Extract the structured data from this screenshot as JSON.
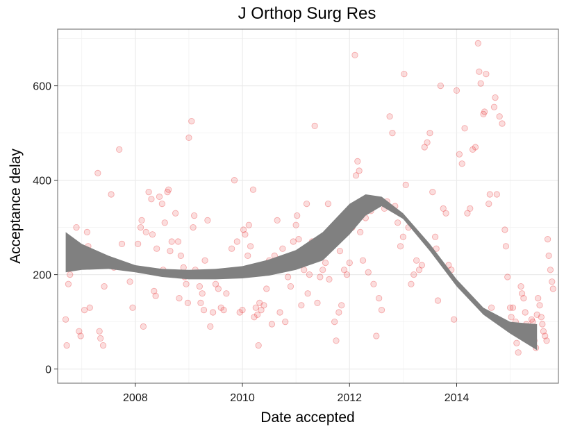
{
  "chart_data": {
    "type": "scatter",
    "title": "J Orthop Surg Res",
    "xlabel": "Date accepted",
    "ylabel": "Acceptance delay",
    "xlim": [
      2006.55,
      2015.9
    ],
    "ylim": [
      -30,
      720
    ],
    "x_ticks": [
      2008,
      2010,
      2012,
      2014
    ],
    "x_tick_labels": [
      "2008",
      "2010",
      "2012",
      "2014"
    ],
    "y_ticks": [
      0,
      200,
      400,
      600
    ],
    "y_tick_labels": [
      "0",
      "200",
      "400",
      "600"
    ],
    "grid": true,
    "legend": "none",
    "point_color": "#e41a1c",
    "point_opacity": 0.15,
    "ribbon_color": "#808080",
    "series": [
      {
        "values": [
          [
            2006.7,
            105
          ],
          [
            2006.72,
            50
          ],
          [
            2006.75,
            180
          ],
          [
            2006.78,
            200
          ],
          [
            2006.8,
            265
          ],
          [
            2006.82,
            245
          ],
          [
            2006.85,
            230
          ],
          [
            2006.9,
            300
          ],
          [
            2006.95,
            80
          ],
          [
            2006.98,
            70
          ],
          [
            2007.0,
            250
          ],
          [
            2007.05,
            125
          ],
          [
            2007.1,
            290
          ],
          [
            2007.12,
            260
          ],
          [
            2007.15,
            130
          ],
          [
            2007.3,
            415
          ],
          [
            2007.33,
            80
          ],
          [
            2007.35,
            65
          ],
          [
            2007.4,
            50
          ],
          [
            2007.42,
            175
          ],
          [
            2007.55,
            370
          ],
          [
            2007.6,
            215
          ],
          [
            2007.62,
            220
          ],
          [
            2007.7,
            465
          ],
          [
            2007.75,
            265
          ],
          [
            2007.9,
            185
          ],
          [
            2007.95,
            130
          ],
          [
            2008.05,
            265
          ],
          [
            2008.1,
            300
          ],
          [
            2008.12,
            315
          ],
          [
            2008.15,
            90
          ],
          [
            2008.2,
            290
          ],
          [
            2008.25,
            375
          ],
          [
            2008.3,
            360
          ],
          [
            2008.32,
            285
          ],
          [
            2008.35,
            165
          ],
          [
            2008.38,
            155
          ],
          [
            2008.4,
            255
          ],
          [
            2008.45,
            365
          ],
          [
            2008.5,
            350
          ],
          [
            2008.52,
            210
          ],
          [
            2008.55,
            310
          ],
          [
            2008.6,
            375
          ],
          [
            2008.62,
            380
          ],
          [
            2008.65,
            250
          ],
          [
            2008.68,
            270
          ],
          [
            2008.7,
            200
          ],
          [
            2008.75,
            330
          ],
          [
            2008.8,
            270
          ],
          [
            2008.82,
            150
          ],
          [
            2008.85,
            240
          ],
          [
            2008.9,
            215
          ],
          [
            2008.92,
            195
          ],
          [
            2008.95,
            180
          ],
          [
            2008.98,
            140
          ],
          [
            2009.0,
            490
          ],
          [
            2009.05,
            525
          ],
          [
            2009.08,
            300
          ],
          [
            2009.1,
            325
          ],
          [
            2009.12,
            210
          ],
          [
            2009.15,
            200
          ],
          [
            2009.2,
            175
          ],
          [
            2009.22,
            140
          ],
          [
            2009.25,
            160
          ],
          [
            2009.28,
            125
          ],
          [
            2009.3,
            230
          ],
          [
            2009.35,
            315
          ],
          [
            2009.4,
            90
          ],
          [
            2009.45,
            120
          ],
          [
            2009.5,
            180
          ],
          [
            2009.55,
            170
          ],
          [
            2009.6,
            130
          ],
          [
            2009.65,
            125
          ],
          [
            2009.7,
            160
          ],
          [
            2009.8,
            255
          ],
          [
            2009.85,
            400
          ],
          [
            2009.9,
            270
          ],
          [
            2009.95,
            120
          ],
          [
            2010.0,
            125
          ],
          [
            2010.02,
            295
          ],
          [
            2010.05,
            285
          ],
          [
            2010.1,
            240
          ],
          [
            2010.12,
            305
          ],
          [
            2010.15,
            260
          ],
          [
            2010.2,
            380
          ],
          [
            2010.22,
            110
          ],
          [
            2010.25,
            130
          ],
          [
            2010.28,
            115
          ],
          [
            2010.3,
            50
          ],
          [
            2010.32,
            140
          ],
          [
            2010.35,
            125
          ],
          [
            2010.4,
            135
          ],
          [
            2010.45,
            170
          ],
          [
            2010.5,
            230
          ],
          [
            2010.55,
            95
          ],
          [
            2010.6,
            240
          ],
          [
            2010.65,
            315
          ],
          [
            2010.7,
            120
          ],
          [
            2010.75,
            255
          ],
          [
            2010.8,
            100
          ],
          [
            2010.85,
            195
          ],
          [
            2010.9,
            175
          ],
          [
            2010.95,
            270
          ],
          [
            2011.0,
            305
          ],
          [
            2011.02,
            325
          ],
          [
            2011.05,
            275
          ],
          [
            2011.1,
            135
          ],
          [
            2011.15,
            210
          ],
          [
            2011.2,
            350
          ],
          [
            2011.22,
            160
          ],
          [
            2011.25,
            200
          ],
          [
            2011.3,
            270
          ],
          [
            2011.35,
            515
          ],
          [
            2011.4,
            140
          ],
          [
            2011.45,
            195
          ],
          [
            2011.5,
            210
          ],
          [
            2011.55,
            225
          ],
          [
            2011.6,
            350
          ],
          [
            2011.62,
            190
          ],
          [
            2011.65,
            260
          ],
          [
            2011.7,
            280
          ],
          [
            2011.72,
            100
          ],
          [
            2011.75,
            60
          ],
          [
            2011.8,
            120
          ],
          [
            2011.82,
            250
          ],
          [
            2011.85,
            135
          ],
          [
            2011.9,
            210
          ],
          [
            2011.95,
            200
          ],
          [
            2012.0,
            225
          ],
          [
            2012.02,
            310
          ],
          [
            2012.05,
            300
          ],
          [
            2012.1,
            665
          ],
          [
            2012.12,
            410
          ],
          [
            2012.15,
            440
          ],
          [
            2012.18,
            420
          ],
          [
            2012.2,
            290
          ],
          [
            2012.25,
            230
          ],
          [
            2012.3,
            320
          ],
          [
            2012.35,
            205
          ],
          [
            2012.4,
            335
          ],
          [
            2012.45,
            180
          ],
          [
            2012.5,
            70
          ],
          [
            2012.55,
            150
          ],
          [
            2012.6,
            125
          ],
          [
            2012.65,
            340
          ],
          [
            2012.7,
            355
          ],
          [
            2012.75,
            535
          ],
          [
            2012.8,
            500
          ],
          [
            2012.85,
            345
          ],
          [
            2012.9,
            310
          ],
          [
            2012.95,
            260
          ],
          [
            2013.0,
            280
          ],
          [
            2013.02,
            625
          ],
          [
            2013.05,
            390
          ],
          [
            2013.1,
            300
          ],
          [
            2013.15,
            180
          ],
          [
            2013.2,
            200
          ],
          [
            2013.25,
            230
          ],
          [
            2013.3,
            210
          ],
          [
            2013.35,
            220
          ],
          [
            2013.4,
            470
          ],
          [
            2013.45,
            480
          ],
          [
            2013.5,
            500
          ],
          [
            2013.55,
            375
          ],
          [
            2013.6,
            280
          ],
          [
            2013.62,
            255
          ],
          [
            2013.65,
            145
          ],
          [
            2013.7,
            600
          ],
          [
            2013.75,
            340
          ],
          [
            2013.8,
            330
          ],
          [
            2013.85,
            220
          ],
          [
            2013.9,
            210
          ],
          [
            2013.95,
            105
          ],
          [
            2014.0,
            590
          ],
          [
            2014.05,
            455
          ],
          [
            2014.1,
            435
          ],
          [
            2014.15,
            510
          ],
          [
            2014.2,
            330
          ],
          [
            2014.25,
            340
          ],
          [
            2014.3,
            465
          ],
          [
            2014.35,
            470
          ],
          [
            2014.4,
            690
          ],
          [
            2014.42,
            630
          ],
          [
            2014.45,
            605
          ],
          [
            2014.5,
            540
          ],
          [
            2014.52,
            545
          ],
          [
            2014.55,
            625
          ],
          [
            2014.6,
            350
          ],
          [
            2014.62,
            370
          ],
          [
            2014.65,
            130
          ],
          [
            2014.7,
            555
          ],
          [
            2014.72,
            575
          ],
          [
            2014.75,
            370
          ],
          [
            2014.8,
            535
          ],
          [
            2014.85,
            520
          ],
          [
            2014.9,
            295
          ],
          [
            2014.92,
            260
          ],
          [
            2014.95,
            195
          ],
          [
            2015.0,
            130
          ],
          [
            2015.02,
            110
          ],
          [
            2015.05,
            130
          ],
          [
            2015.1,
            100
          ],
          [
            2015.12,
            55
          ],
          [
            2015.15,
            35
          ],
          [
            2015.2,
            175
          ],
          [
            2015.22,
            160
          ],
          [
            2015.25,
            150
          ],
          [
            2015.28,
            120
          ],
          [
            2015.3,
            95
          ],
          [
            2015.32,
            90
          ],
          [
            2015.35,
            85
          ],
          [
            2015.38,
            70
          ],
          [
            2015.4,
            105
          ],
          [
            2015.42,
            100
          ],
          [
            2015.45,
            60
          ],
          [
            2015.48,
            45
          ],
          [
            2015.5,
            115
          ],
          [
            2015.52,
            150
          ],
          [
            2015.55,
            135
          ],
          [
            2015.58,
            110
          ],
          [
            2015.6,
            95
          ],
          [
            2015.62,
            80
          ],
          [
            2015.65,
            70
          ],
          [
            2015.68,
            60
          ],
          [
            2015.7,
            275
          ],
          [
            2015.72,
            240
          ],
          [
            2015.75,
            210
          ],
          [
            2015.78,
            185
          ],
          [
            2015.8,
            170
          ]
        ]
      }
    ],
    "smooth_ribbon": {
      "x": [
        2006.7,
        2007.0,
        2007.5,
        2008.0,
        2008.5,
        2009.0,
        2009.5,
        2010.0,
        2010.5,
        2011.0,
        2011.5,
        2012.0,
        2012.3,
        2012.6,
        2013.0,
        2013.5,
        2014.0,
        2014.5,
        2015.0,
        2015.5
      ],
      "lower": [
        205,
        210,
        212,
        205,
        195,
        190,
        190,
        192,
        198,
        210,
        230,
        285,
        325,
        345,
        318,
        250,
        175,
        115,
        75,
        40
      ],
      "upper": [
        290,
        265,
        240,
        220,
        212,
        210,
        212,
        218,
        232,
        252,
        290,
        350,
        370,
        365,
        330,
        265,
        190,
        130,
        100,
        95
      ]
    }
  }
}
